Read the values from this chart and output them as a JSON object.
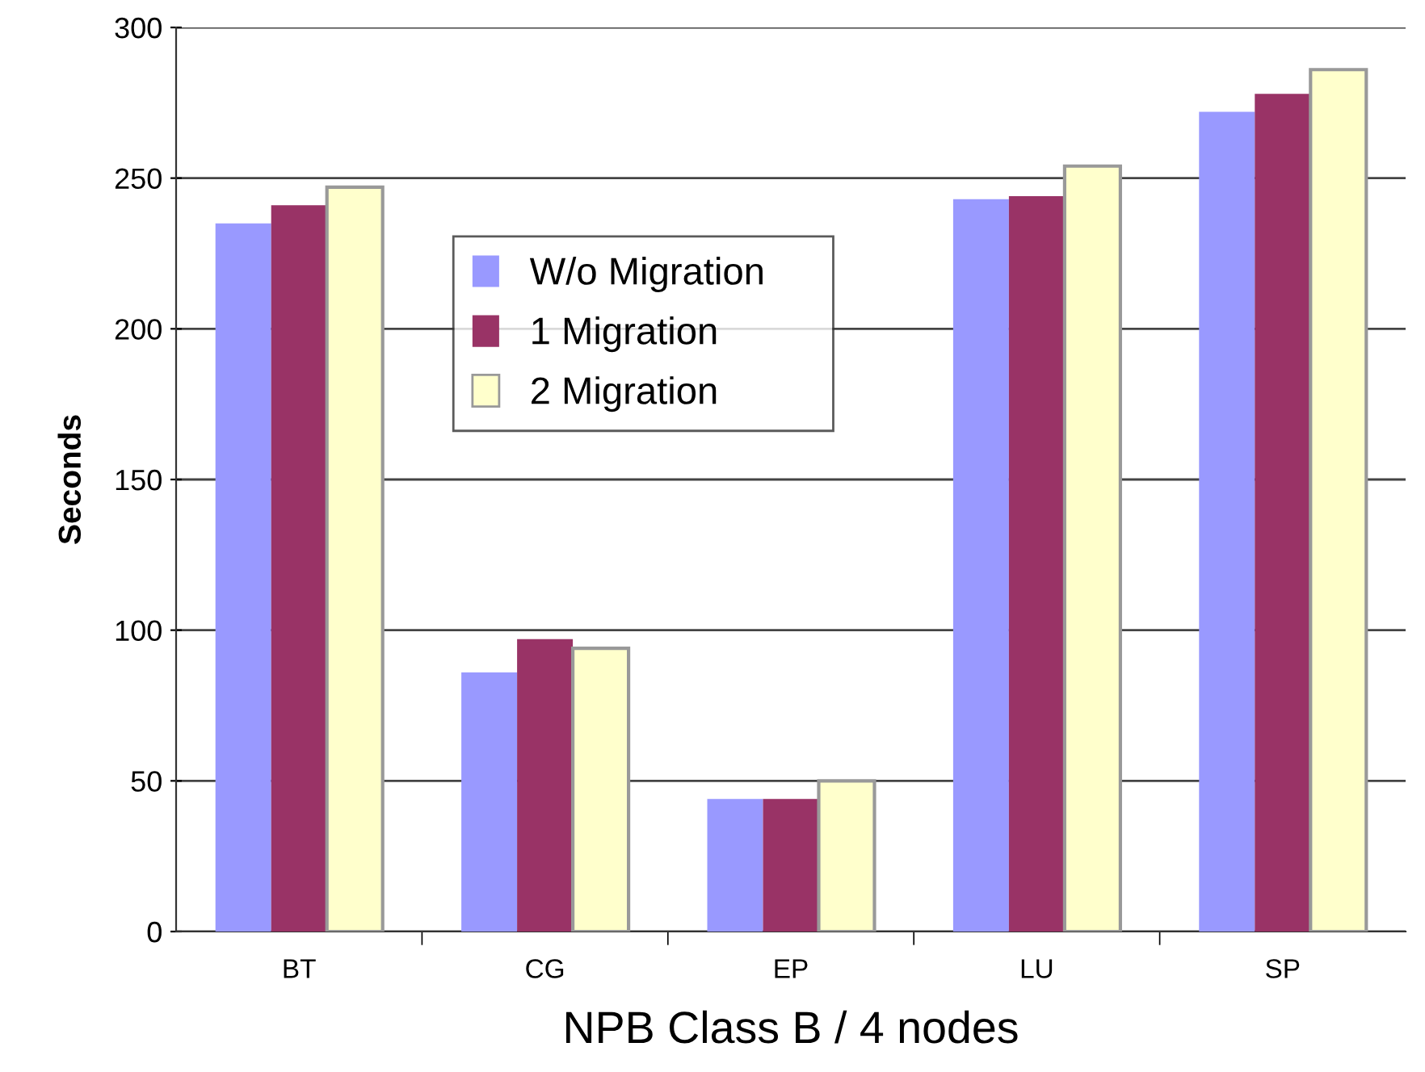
{
  "chart_data": {
    "type": "bar",
    "xlabel": "NPB Class B / 4 nodes",
    "ylabel": "Seconds",
    "categories": [
      "BT",
      "CG",
      "EP",
      "LU",
      "SP"
    ],
    "series": [
      {
        "name": "W/o Migration",
        "color": "#9999ff",
        "values": [
          235,
          86,
          44,
          243,
          272
        ]
      },
      {
        "name": "1 Migration",
        "color": "#993366",
        "values": [
          241,
          97,
          44,
          244,
          278
        ]
      },
      {
        "name": "2 Migration",
        "color": "#ffffcc",
        "values": [
          247,
          94,
          50,
          254,
          286
        ]
      }
    ],
    "ylim": [
      0,
      300
    ],
    "yticks": [
      0,
      50,
      100,
      150,
      200,
      250,
      300
    ],
    "grid": "y",
    "legend": "top"
  }
}
